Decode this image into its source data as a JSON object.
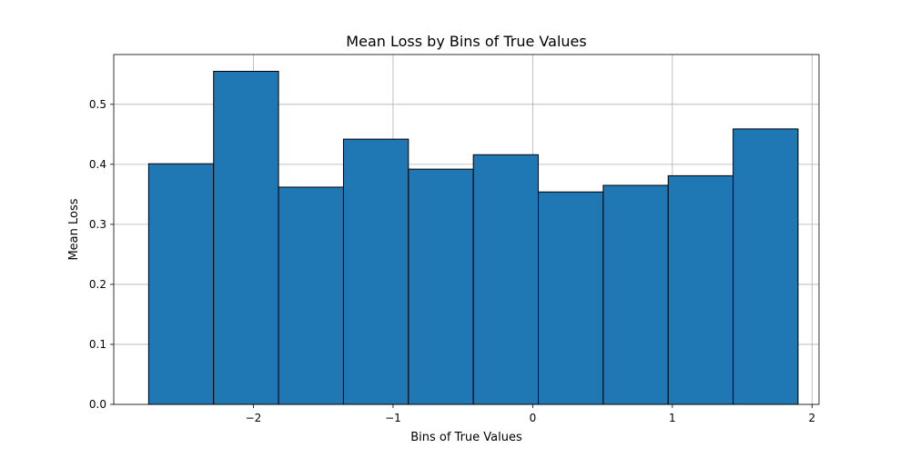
{
  "chart_data": {
    "type": "bar",
    "title": "Mean Loss by Bins of True Values",
    "xlabel": "Bins of True Values",
    "ylabel": "Mean Loss",
    "xlim": [
      -3.0,
      2.05
    ],
    "ylim": [
      0.0,
      0.583
    ],
    "grid": true,
    "bar_color": "#1f77b4",
    "edge_color": "#000000",
    "bin_edges": [
      -2.75,
      -2.285,
      -1.82,
      -1.355,
      -0.89,
      -0.425,
      0.04,
      0.505,
      0.97,
      1.435,
      1.9
    ],
    "values": [
      0.401,
      0.555,
      0.362,
      0.442,
      0.392,
      0.416,
      0.354,
      0.365,
      0.381,
      0.459
    ],
    "x_ticks": [
      {
        "value": -2,
        "label": "−2"
      },
      {
        "value": -1,
        "label": "−1"
      },
      {
        "value": 0,
        "label": "0"
      },
      {
        "value": 1,
        "label": "1"
      },
      {
        "value": 2,
        "label": "2"
      }
    ],
    "y_ticks": [
      {
        "value": 0.0,
        "label": "0.0"
      },
      {
        "value": 0.1,
        "label": "0.1"
      },
      {
        "value": 0.2,
        "label": "0.2"
      },
      {
        "value": 0.3,
        "label": "0.3"
      },
      {
        "value": 0.4,
        "label": "0.4"
      },
      {
        "value": 0.5,
        "label": "0.5"
      }
    ]
  }
}
